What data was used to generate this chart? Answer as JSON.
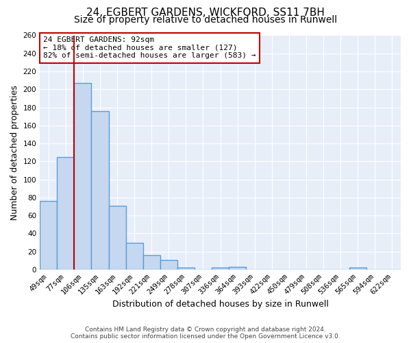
{
  "title1": "24, EGBERT GARDENS, WICKFORD, SS11 7BH",
  "title2": "Size of property relative to detached houses in Runwell",
  "xlabel": "Distribution of detached houses by size in Runwell",
  "ylabel": "Number of detached properties",
  "categories": [
    "49sqm",
    "77sqm",
    "106sqm",
    "135sqm",
    "163sqm",
    "192sqm",
    "221sqm",
    "249sqm",
    "278sqm",
    "307sqm",
    "336sqm",
    "364sqm",
    "393sqm",
    "422sqm",
    "450sqm",
    "479sqm",
    "508sqm",
    "536sqm",
    "565sqm",
    "594sqm",
    "622sqm"
  ],
  "values": [
    76,
    125,
    207,
    176,
    71,
    30,
    16,
    11,
    2,
    0,
    2,
    3,
    0,
    0,
    0,
    0,
    0,
    0,
    2,
    0,
    0
  ],
  "bar_color": "#c5d8f0",
  "bar_edge_color": "#5b9bd5",
  "bar_linewidth": 1.0,
  "vline_x": 1.5,
  "vline_color": "#c00000",
  "annotation_text": "24 EGBERT GARDENS: 92sqm\n← 18% of detached houses are smaller (127)\n82% of semi-detached houses are larger (583) →",
  "annotation_box_color": "white",
  "annotation_box_edge": "#c00000",
  "ylim": [
    0,
    260
  ],
  "yticks": [
    0,
    20,
    40,
    60,
    80,
    100,
    120,
    140,
    160,
    180,
    200,
    220,
    240,
    260
  ],
  "background_color": "#e8eef8",
  "grid_color": "#ffffff",
  "footnote": "Contains HM Land Registry data © Crown copyright and database right 2024.\nContains public sector information licensed under the Open Government Licence v3.0.",
  "title1_fontsize": 11,
  "title2_fontsize": 10,
  "xlabel_fontsize": 9,
  "ylabel_fontsize": 9,
  "tick_fontsize": 7.5,
  "footnote_fontsize": 6.5
}
